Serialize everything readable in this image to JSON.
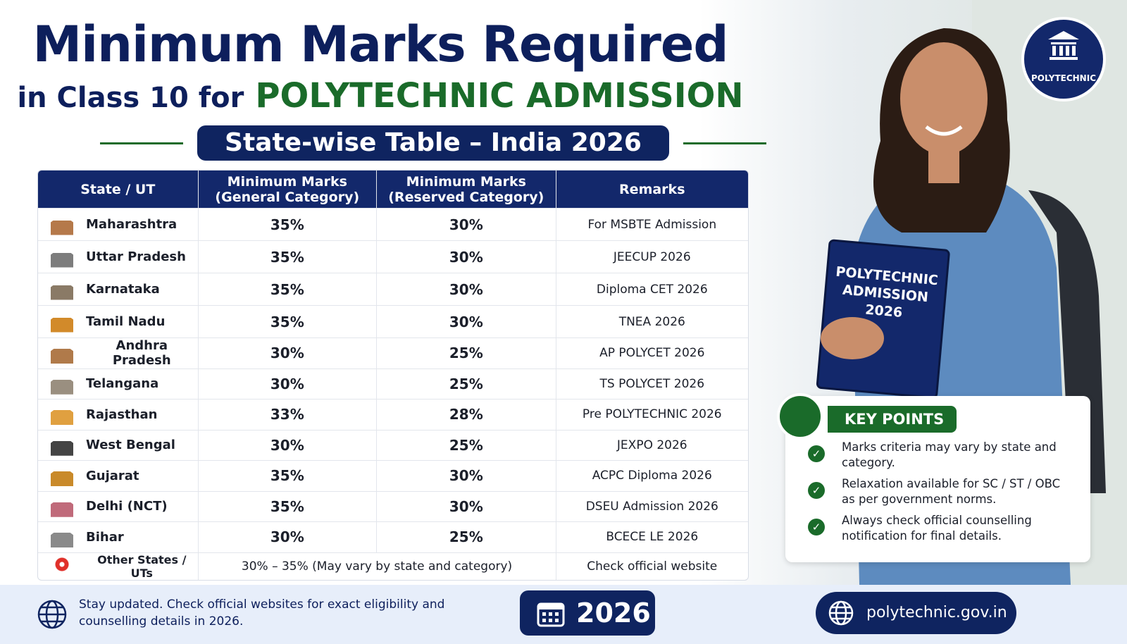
{
  "header": {
    "title": "Minimum Marks Required",
    "subtitle_prefix": "in Class 10 for",
    "subtitle_highlight": "POLYTECHNIC ADMISSION",
    "banner": "State-wise Table – India 2026"
  },
  "badge": "POLYTECHNIC",
  "book": [
    "POLYTECHNIC",
    "ADMISSION",
    "2026"
  ],
  "table": {
    "columns": [
      [
        "State / UT"
      ],
      [
        "Minimum Marks",
        "(General Category)"
      ],
      [
        "Minimum Marks",
        "(Reserved Category)"
      ],
      [
        "Remarks"
      ]
    ],
    "rows": [
      [
        "Maharashtra",
        "35%",
        "30%",
        "For MSBTE Admission"
      ],
      [
        "Uttar Pradesh",
        "35%",
        "30%",
        "JEECUP 2026"
      ],
      [
        "Karnataka",
        "35%",
        "30%",
        "Diploma CET 2026"
      ],
      [
        "Tamil Nadu",
        "35%",
        "30%",
        "TNEA 2026"
      ],
      [
        "Andhra Pradesh",
        "30%",
        "25%",
        "AP POLYCET 2026"
      ],
      [
        "Telangana",
        "30%",
        "25%",
        "TS POLYCET 2026"
      ],
      [
        "Rajasthan",
        "33%",
        "28%",
        "Pre POLYTECHNIC 2026"
      ],
      [
        "West Bengal",
        "30%",
        "25%",
        "JEXPO 2026"
      ],
      [
        "Gujarat",
        "35%",
        "30%",
        "ACPC Diploma 2026"
      ],
      [
        "Delhi (NCT)",
        "35%",
        "30%",
        "DSEU Admission 2026"
      ],
      [
        "Bihar",
        "30%",
        "25%",
        "BCECE LE 2026"
      ]
    ],
    "other": [
      "Other States / UTs",
      "30% – 35% (May vary by state and category)",
      "Check official website"
    ]
  },
  "key_points": {
    "title": "KEY POINTS",
    "items": [
      "Marks criteria may vary by state and category.",
      "Relaxation available for SC / ST / OBC as per government norms.",
      "Always check official counselling notification for final details."
    ]
  },
  "footer": {
    "note": "Stay updated. Check official websites for exact eligibility and counselling details in 2026.",
    "year": "2026",
    "website": "polytechnic.gov.in"
  }
}
